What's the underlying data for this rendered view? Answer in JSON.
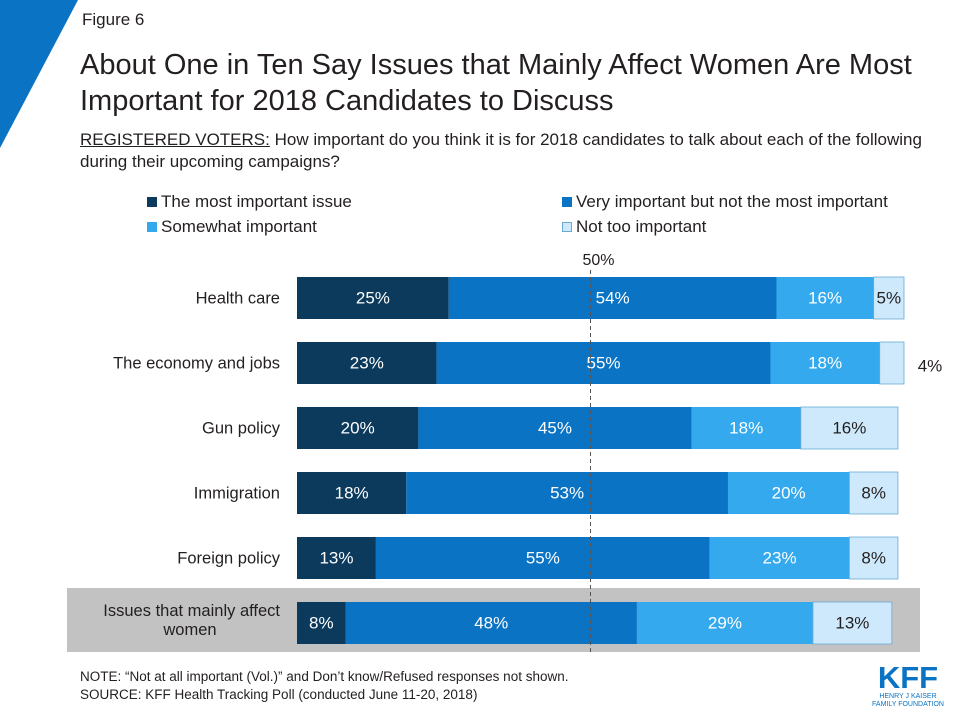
{
  "figure_label": "Figure 6",
  "title": "About One in Ten Say Issues that Mainly Affect Women Are Most Important for 2018 Candidates to Discuss",
  "subtitle": {
    "prefix": "REGISTERED VOTERS:",
    "text": " How important do you think it is for 2018 candidates to talk about each of the following during their upcoming campaigns?"
  },
  "colors": {
    "most_important": "#0b3a5c",
    "very_important": "#0a73c4",
    "somewhat_important": "#34a9ee",
    "not_too_important": "#cde9fb",
    "corner_accent": "#0a73c4",
    "highlight_row": "#c2c2c2",
    "reference_line": "#555555"
  },
  "legend": [
    {
      "label": "The most important issue",
      "color": "#0b3a5c"
    },
    {
      "label": "Very important but not the most important",
      "color": "#0a73c4"
    },
    {
      "label": "Somewhat important",
      "color": "#34a9ee"
    },
    {
      "label": "Not too important",
      "color": "#cde9fb"
    }
  ],
  "chart_data": {
    "type": "bar",
    "orientation": "horizontal",
    "stacked": true,
    "categories": [
      "Health care",
      "The economy and jobs",
      "Gun policy",
      "Immigration",
      "Foreign policy",
      "Issues that mainly affect women"
    ],
    "highlighted_category": "Issues that mainly affect women",
    "series": [
      {
        "name": "The most important issue",
        "values": [
          25,
          23,
          20,
          18,
          13,
          8
        ],
        "labels": [
          "25%",
          "23%",
          "20%",
          "18%",
          "13%",
          "8%"
        ]
      },
      {
        "name": "Very important but not the most important",
        "values": [
          54,
          55,
          45,
          53,
          55,
          48
        ],
        "labels": [
          "54%",
          "55%",
          "45%",
          "53%",
          "55%",
          "48%"
        ]
      },
      {
        "name": "Somewhat important",
        "values": [
          16,
          18,
          18,
          20,
          23,
          29
        ],
        "labels": [
          "16%",
          "18%",
          "18%",
          "20%",
          "23%",
          "29%"
        ]
      },
      {
        "name": "Not too important",
        "values": [
          5,
          4,
          16,
          8,
          8,
          13
        ],
        "labels": [
          "5%",
          "4%",
          "16%",
          "8%",
          "8%",
          "13%"
        ]
      }
    ],
    "outside_labels": [
      false,
      true,
      false,
      false,
      false,
      false
    ],
    "reference_line": {
      "value": 50,
      "label": "50%"
    },
    "xlim": [
      0,
      100
    ]
  },
  "notes": {
    "note": "NOTE: “Not at all important (Vol.)” and Don’t know/Refused responses not shown.",
    "source": "SOURCE: KFF Health Tracking Poll (conducted June 11-20, 2018)"
  },
  "logo": {
    "text": "KFF",
    "line1": "HENRY J KAISER",
    "line2": "FAMILY FOUNDATION"
  }
}
